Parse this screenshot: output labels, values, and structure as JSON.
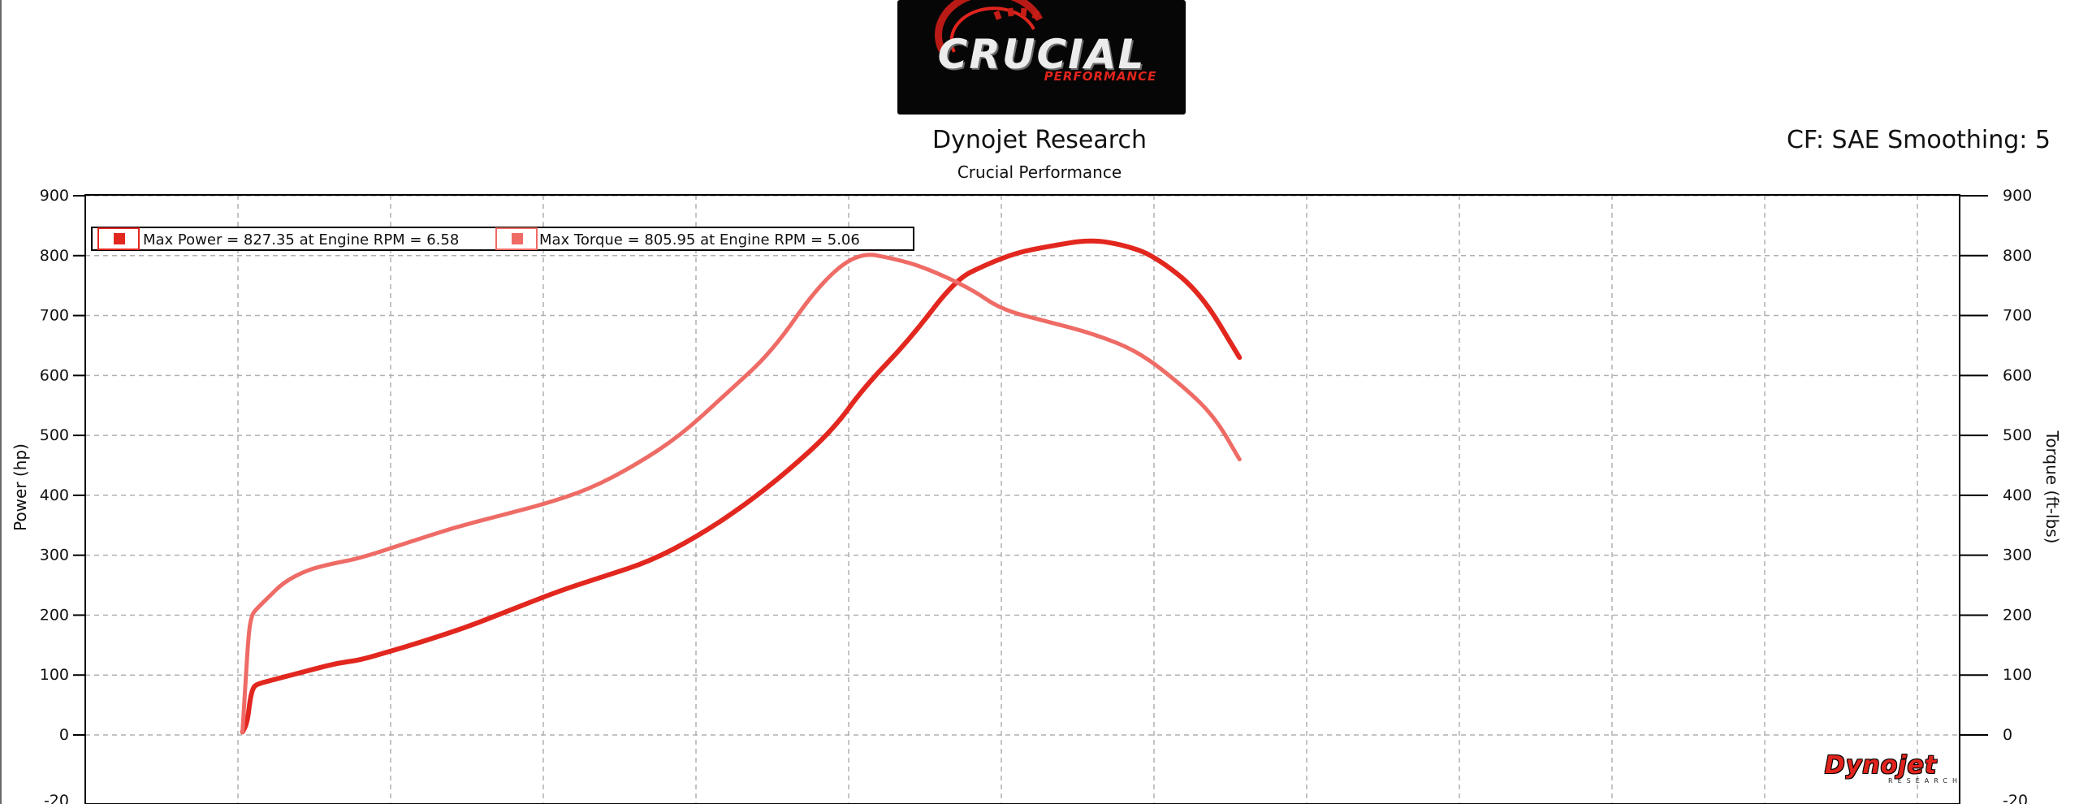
{
  "logo": {
    "main": "CRUCIAL",
    "sub": "PERFORMANCE"
  },
  "header": {
    "title": "Dynojet Research",
    "subtitle": "Crucial Performance",
    "cf_line": "CF: SAE Smoothing: 5"
  },
  "brand": {
    "main": "Dynojet",
    "sub": "RESEARCH"
  },
  "colors": {
    "power": "#e2271f",
    "torque": "#ee6b66",
    "grid": "#b0b0b0",
    "logo_bg": "#060606"
  },
  "chart_data": {
    "type": "line",
    "ylabel": "Power (hp)",
    "y2label": "Torque (ft-lbs)",
    "ylim": [
      -20,
      900
    ],
    "y2lim": [
      -20,
      900
    ],
    "xlim": [
      0,
      12.4
    ],
    "yticks": [
      "900",
      "800",
      "700",
      "600",
      "500",
      "400",
      "300",
      "200",
      "100",
      "0",
      "-20"
    ],
    "y2ticks": [
      "900",
      "800",
      "700",
      "600",
      "500",
      "400",
      "300",
      "200",
      "100",
      "0",
      "-20"
    ],
    "grid": true,
    "legend_position": "top-left",
    "legend": [
      {
        "label": "Max Power = 827.35 at Engine RPM = 6.58"
      },
      {
        "label": "Max Torque = 805.95 at Engine RPM = 5.06"
      }
    ],
    "series": [
      {
        "name": "Power",
        "axis": "left",
        "x": [
          1.03,
          1.06,
          1.08,
          1.1,
          1.13,
          1.2,
          1.35,
          1.5,
          1.65,
          1.8,
          2.0,
          2.2,
          2.5,
          2.8,
          3.1,
          3.4,
          3.7,
          4.0,
          4.3,
          4.6,
          4.9,
          5.1,
          5.4,
          5.7,
          5.9,
          6.1,
          6.3,
          6.58,
          6.8,
          7.0,
          7.3,
          7.56
        ],
        "values": [
          5,
          20,
          60,
          80,
          85,
          90,
          100,
          110,
          120,
          125,
          140,
          155,
          180,
          210,
          240,
          265,
          290,
          330,
          380,
          440,
          510,
          580,
          660,
          760,
          785,
          805,
          815,
          827,
          818,
          800,
          740,
          630
        ]
      },
      {
        "name": "Torque",
        "axis": "right",
        "x": [
          1.03,
          1.05,
          1.07,
          1.09,
          1.12,
          1.2,
          1.3,
          1.45,
          1.6,
          1.8,
          2.1,
          2.4,
          2.7,
          3.0,
          3.3,
          3.6,
          3.9,
          4.2,
          4.5,
          4.8,
          5.06,
          5.3,
          5.5,
          5.8,
          6.0,
          6.3,
          6.6,
          6.9,
          7.2,
          7.4,
          7.56
        ],
        "values": [
          5,
          90,
          170,
          200,
          210,
          230,
          255,
          275,
          285,
          295,
          320,
          345,
          365,
          385,
          410,
          450,
          500,
          570,
          640,
          750,
          806,
          795,
          780,
          745,
          710,
          690,
          670,
          640,
          580,
          530,
          460
        ]
      }
    ]
  }
}
